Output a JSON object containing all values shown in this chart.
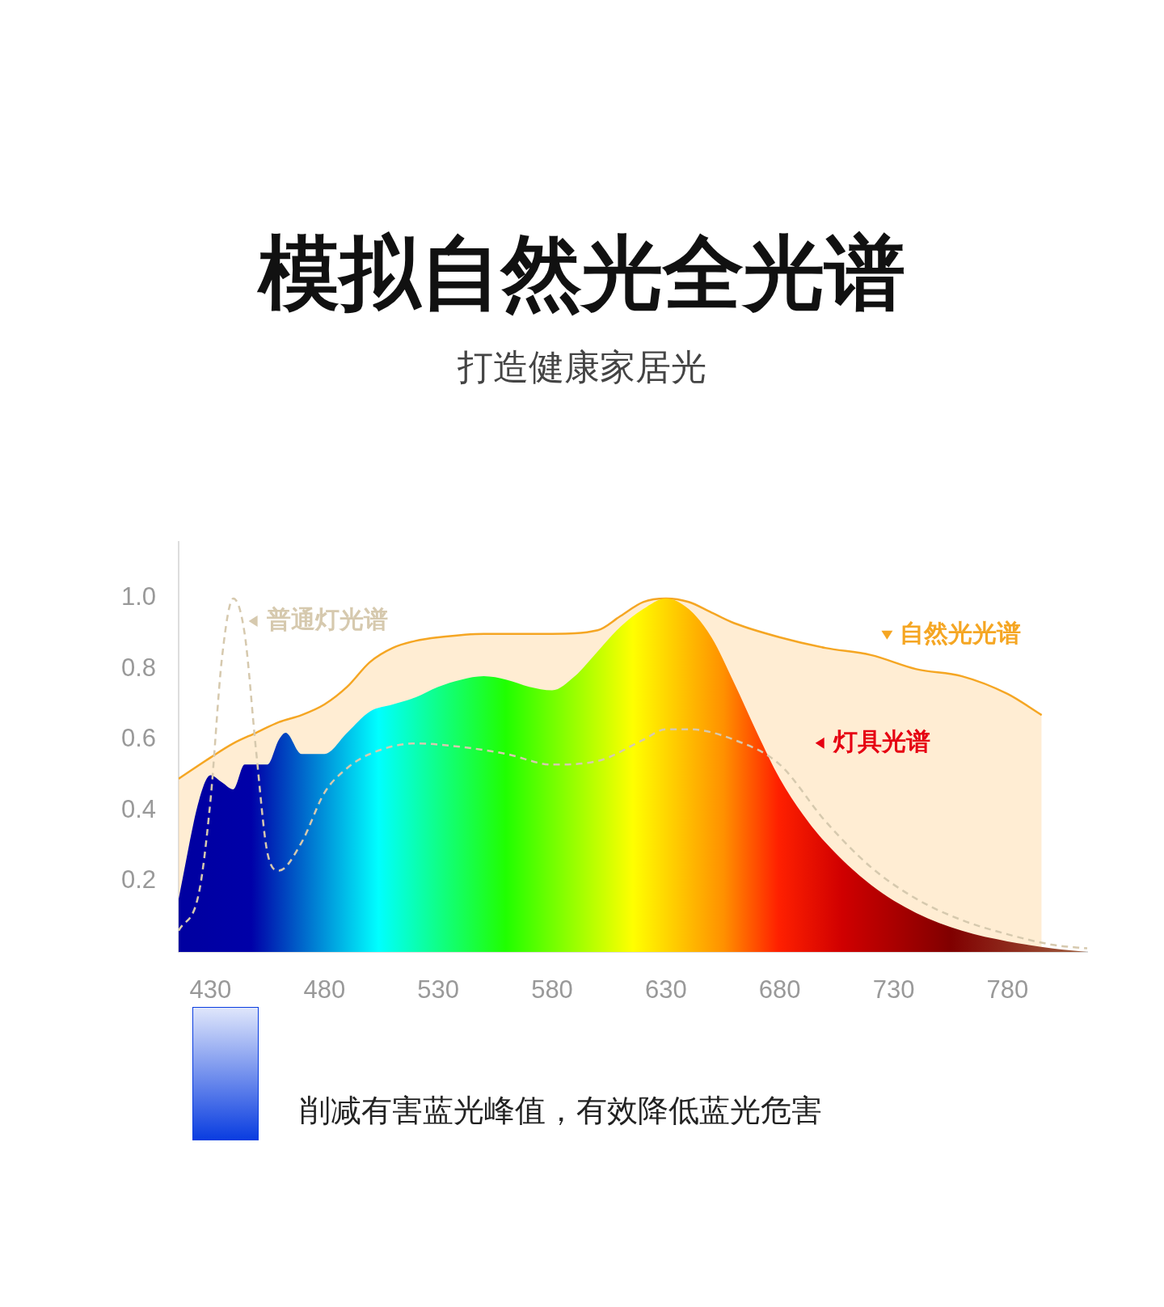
{
  "chart_data": {
    "type": "area",
    "title": "模拟自然光全光谱",
    "subtitle": "打造健康家居光",
    "xlim": [
      416,
      815
    ],
    "xticks": [
      430,
      480,
      530,
      580,
      630,
      680,
      730,
      780
    ],
    "ylim": [
      0,
      1.16
    ],
    "yticks": [
      {
        "value": 0.2,
        "label": "0.2"
      },
      {
        "value": 0.4,
        "label": "0.4"
      },
      {
        "value": 0.6,
        "label": "0.6"
      },
      {
        "value": 0.8,
        "label": "0.8"
      },
      {
        "value": 1,
        "label": "1.0"
      }
    ],
    "grid": false,
    "legend": "top right",
    "annotations": [
      "削减有害蓝光峰值，有效降低蓝光危害"
    ],
    "series": [
      {
        "name": "自然光光谱",
        "color": "#f5a623",
        "x": [
          416,
          430,
          440,
          450,
          460,
          470,
          480,
          490,
          500,
          510,
          520,
          530,
          550,
          580,
          600,
          610,
          620,
          630,
          640,
          650,
          660,
          680,
          700,
          720,
          740,
          760,
          780,
          795
        ],
        "values": [
          0.49,
          0.55,
          0.59,
          0.62,
          0.65,
          0.67,
          0.7,
          0.75,
          0.82,
          0.86,
          0.88,
          0.89,
          0.9,
          0.9,
          0.91,
          0.95,
          0.99,
          1.0,
          0.99,
          0.96,
          0.93,
          0.89,
          0.86,
          0.84,
          0.8,
          0.78,
          0.73,
          0.67
        ]
      },
      {
        "name": "灯具光谱",
        "color": "#e60012",
        "x": [
          416,
          425,
          430,
          435,
          440,
          445,
          450,
          455,
          460,
          463,
          470,
          480,
          490,
          500,
          510,
          520,
          530,
          540,
          550,
          560,
          570,
          580,
          590,
          600,
          610,
          620,
          630,
          640,
          650,
          660,
          670,
          680,
          690,
          700,
          720,
          740,
          760,
          780,
          800,
          815
        ],
        "values": [
          0.15,
          0.43,
          0.5,
          0.48,
          0.46,
          0.53,
          0.53,
          0.53,
          0.6,
          0.62,
          0.56,
          0.56,
          0.62,
          0.68,
          0.7,
          0.72,
          0.75,
          0.77,
          0.78,
          0.77,
          0.75,
          0.74,
          0.78,
          0.85,
          0.92,
          0.97,
          1.0,
          0.97,
          0.89,
          0.76,
          0.62,
          0.49,
          0.39,
          0.31,
          0.19,
          0.11,
          0.06,
          0.03,
          0.01,
          0.0
        ]
      },
      {
        "name": "普通灯光谱",
        "type": "line",
        "line_style": "dashed",
        "color": "#d6c9ae",
        "x": [
          416,
          425,
          430,
          435,
          440,
          445,
          450,
          455,
          460,
          470,
          480,
          490,
          500,
          520,
          540,
          560,
          580,
          600,
          620,
          630,
          640,
          660,
          680,
          700,
          720,
          740,
          760,
          780,
          800,
          815
        ],
        "values": [
          0.06,
          0.17,
          0.43,
          0.83,
          1.0,
          0.9,
          0.57,
          0.28,
          0.23,
          0.31,
          0.45,
          0.52,
          0.56,
          0.59,
          0.58,
          0.56,
          0.53,
          0.54,
          0.6,
          0.63,
          0.63,
          0.6,
          0.53,
          0.37,
          0.24,
          0.15,
          0.09,
          0.05,
          0.02,
          0.01
        ]
      }
    ]
  }
}
